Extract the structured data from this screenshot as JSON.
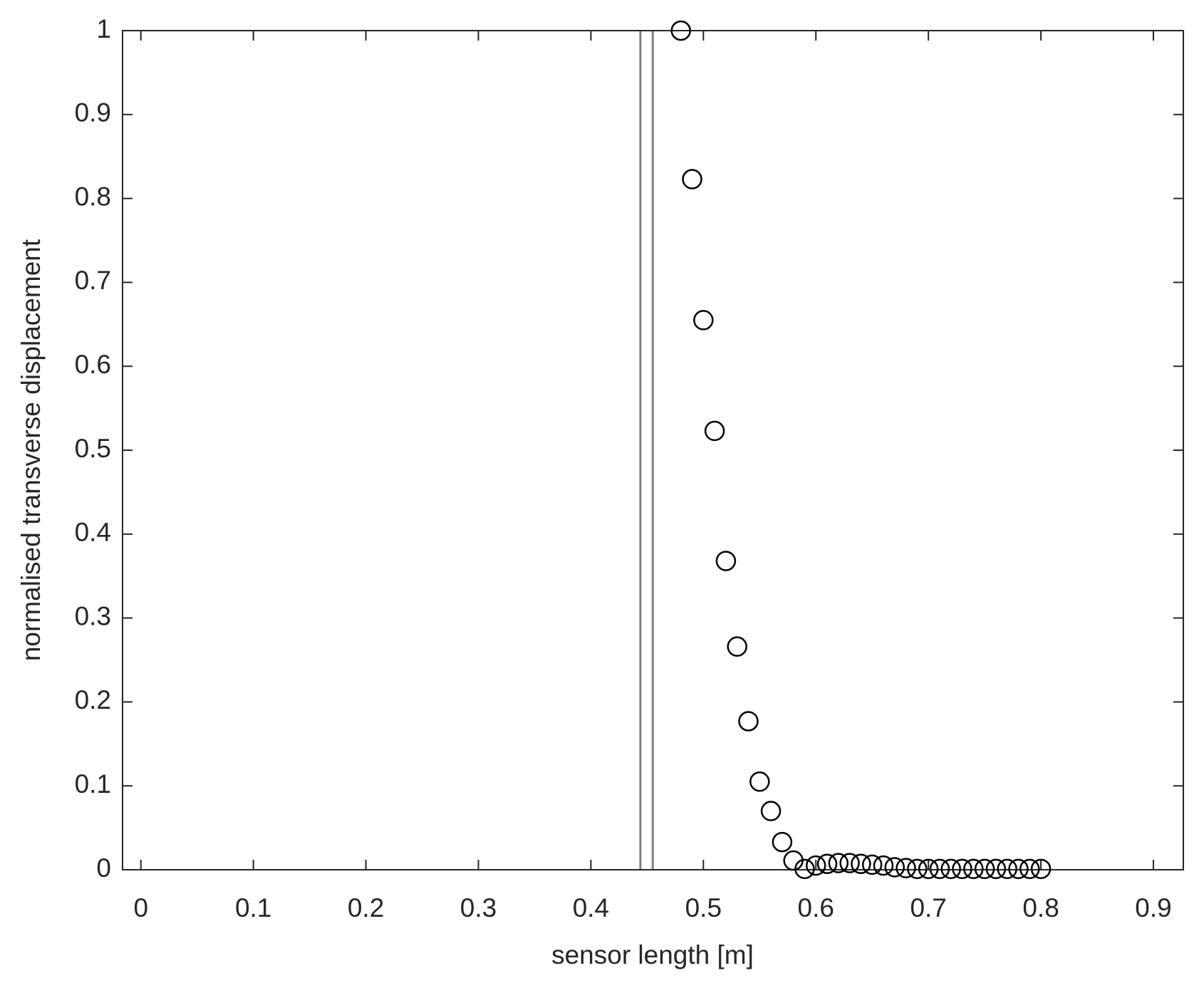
{
  "chart_data": {
    "type": "scatter",
    "xlabel": "sensor length [m]",
    "ylabel": "normalised transverse displacement",
    "x": [
      0.48,
      0.49,
      0.5,
      0.51,
      0.52,
      0.53,
      0.54,
      0.55,
      0.56,
      0.57,
      0.58,
      0.59,
      0.6,
      0.61,
      0.62,
      0.63,
      0.64,
      0.65,
      0.66,
      0.67,
      0.68,
      0.69,
      0.7,
      0.71,
      0.72,
      0.73,
      0.74,
      0.75,
      0.76,
      0.77,
      0.78,
      0.79,
      0.8
    ],
    "values": [
      1,
      0.823,
      0.655,
      0.523,
      0.368,
      0.266,
      0.177,
      0.105,
      0.07,
      0.033,
      0.011,
      0.001,
      0.005,
      0.007,
      0.008,
      0.008,
      0.007,
      0.006,
      0.005,
      0.003,
      0.002,
      0.001,
      0.001,
      0.001,
      0.001,
      0.001,
      0.001,
      0.001,
      0.001,
      0.001,
      0.001,
      0.001,
      0.001
    ],
    "color": "#000000",
    "vlines": [
      0.444,
      0.455
    ],
    "vline_color": "#808080",
    "xlim": [
      -0.0163,
      0.9266
    ],
    "ylim": [
      0,
      1
    ],
    "xticks": [
      0,
      0.1,
      0.2,
      0.3,
      0.4,
      0.5,
      0.6,
      0.7,
      0.8,
      0.9
    ],
    "yticks": [
      0,
      0.1,
      0.2,
      0.3,
      0.4,
      0.5,
      0.6,
      0.7,
      0.8,
      0.9,
      1
    ],
    "grid": false
  }
}
